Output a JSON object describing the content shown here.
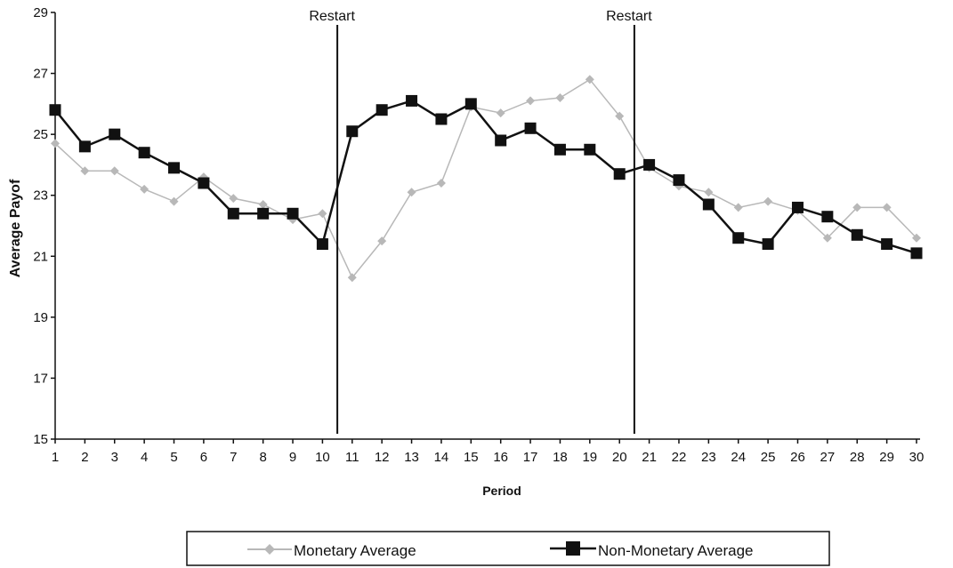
{
  "chart_data": {
    "type": "line",
    "xlabel": "Period",
    "ylabel": "Average Payof",
    "x": [
      1,
      2,
      3,
      4,
      5,
      6,
      7,
      8,
      9,
      10,
      11,
      12,
      13,
      14,
      15,
      16,
      17,
      18,
      19,
      20,
      21,
      22,
      23,
      24,
      25,
      26,
      27,
      28,
      29,
      30
    ],
    "ylim": [
      15,
      29
    ],
    "yticks": [
      15,
      17,
      19,
      21,
      23,
      25,
      27,
      29
    ],
    "series": [
      {
        "name": "Monetary Average",
        "color": "#b8b8b8",
        "marker": "diamond",
        "values": [
          24.7,
          23.8,
          23.8,
          23.2,
          22.8,
          23.6,
          22.9,
          22.7,
          22.2,
          22.4,
          20.3,
          21.5,
          23.1,
          23.4,
          25.9,
          25.7,
          26.1,
          26.2,
          26.8,
          25.6,
          23.9,
          23.3,
          23.1,
          22.6,
          22.8,
          22.5,
          21.6,
          22.6,
          22.6,
          21.6
        ]
      },
      {
        "name": "Non-Monetary Average",
        "color": "#111111",
        "marker": "square",
        "values": [
          25.8,
          24.6,
          25.0,
          24.4,
          23.9,
          23.4,
          22.4,
          22.4,
          22.4,
          21.4,
          25.1,
          25.8,
          26.1,
          25.5,
          26.0,
          24.8,
          25.2,
          24.5,
          24.5,
          23.7,
          24.0,
          23.5,
          22.7,
          21.6,
          21.4,
          22.6,
          22.3,
          21.7,
          21.4,
          21.1
        ]
      }
    ],
    "annotations": [
      {
        "label": "Restart",
        "x": 10.5
      },
      {
        "label": "Restart",
        "x": 20.5
      }
    ],
    "legend_position": "bottom",
    "grid": false
  }
}
